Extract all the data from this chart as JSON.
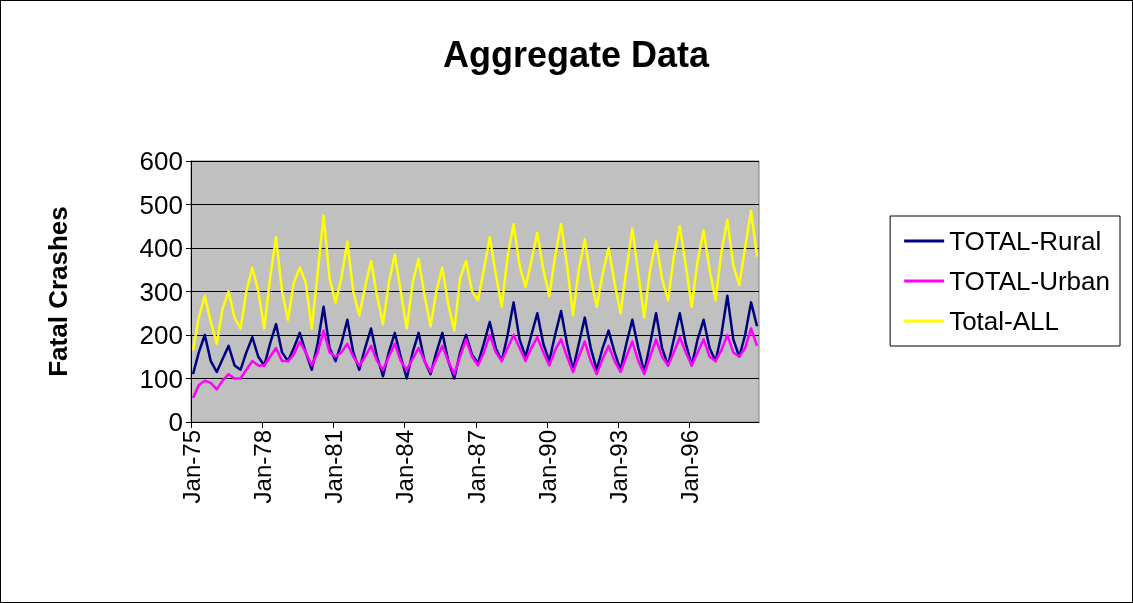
{
  "chart_data": {
    "type": "line",
    "title": "Aggregate Data",
    "ylabel": "Fatal Crashes",
    "x": [
      "1975-02",
      "1975-05",
      "1975-08",
      "1975-11",
      "1976-02",
      "1976-05",
      "1976-08",
      "1976-11",
      "1977-02",
      "1977-05",
      "1977-08",
      "1977-11",
      "1978-02",
      "1978-05",
      "1978-08",
      "1978-11",
      "1979-02",
      "1979-05",
      "1979-08",
      "1979-11",
      "1980-02",
      "1980-05",
      "1980-08",
      "1980-11",
      "1981-02",
      "1981-05",
      "1981-08",
      "1981-11",
      "1982-02",
      "1982-05",
      "1982-08",
      "1982-11",
      "1983-02",
      "1983-05",
      "1983-08",
      "1983-11",
      "1984-02",
      "1984-05",
      "1984-08",
      "1984-11",
      "1985-02",
      "1985-05",
      "1985-08",
      "1985-11",
      "1986-02",
      "1986-05",
      "1986-08",
      "1986-11",
      "1987-02",
      "1987-05",
      "1987-08",
      "1987-11",
      "1988-02",
      "1988-05",
      "1988-08",
      "1988-11",
      "1989-02",
      "1989-05",
      "1989-08",
      "1989-11",
      "1990-02",
      "1990-05",
      "1990-08",
      "1990-11",
      "1991-02",
      "1991-05",
      "1991-08",
      "1991-11",
      "1992-02",
      "1992-05",
      "1992-08",
      "1992-11",
      "1993-02",
      "1993-05",
      "1993-08",
      "1993-11",
      "1994-02",
      "1994-05",
      "1994-08",
      "1994-11",
      "1995-02",
      "1995-05",
      "1995-08",
      "1995-11",
      "1996-02",
      "1996-05",
      "1996-08",
      "1996-11",
      "1997-02",
      "1997-05",
      "1997-08",
      "1997-11",
      "1998-02",
      "1998-05",
      "1998-08",
      "1998-11"
    ],
    "series": [
      {
        "name": "TOTAL-Rural",
        "color": "#000080",
        "values": [
          110,
          160,
          200,
          140,
          115,
          145,
          175,
          130,
          120,
          160,
          195,
          150,
          130,
          180,
          225,
          160,
          140,
          170,
          205,
          160,
          120,
          180,
          265,
          170,
          140,
          180,
          235,
          160,
          120,
          170,
          215,
          150,
          105,
          160,
          205,
          150,
          100,
          160,
          205,
          140,
          110,
          160,
          205,
          140,
          100,
          160,
          200,
          155,
          135,
          180,
          230,
          170,
          140,
          200,
          275,
          190,
          150,
          200,
          250,
          180,
          140,
          200,
          255,
          180,
          120,
          180,
          240,
          170,
          120,
          170,
          210,
          160,
          120,
          180,
          235,
          170,
          115,
          180,
          250,
          170,
          130,
          190,
          250,
          180,
          130,
          190,
          235,
          170,
          140,
          200,
          290,
          190,
          150,
          200,
          275,
          220
        ]
      },
      {
        "name": "TOTAL-Urban",
        "color": "#ff00ff",
        "values": [
          55,
          85,
          95,
          90,
          75,
          95,
          110,
          100,
          100,
          120,
          140,
          130,
          130,
          150,
          170,
          140,
          140,
          155,
          185,
          160,
          130,
          160,
          210,
          160,
          150,
          160,
          180,
          150,
          130,
          150,
          175,
          140,
          120,
          150,
          180,
          140,
          120,
          145,
          170,
          140,
          115,
          145,
          175,
          140,
          110,
          150,
          190,
          150,
          130,
          160,
          200,
          160,
          140,
          170,
          200,
          170,
          140,
          170,
          195,
          160,
          130,
          165,
          190,
          150,
          115,
          150,
          185,
          140,
          110,
          145,
          175,
          140,
          115,
          150,
          185,
          140,
          110,
          150,
          190,
          150,
          130,
          160,
          195,
          160,
          130,
          160,
          190,
          150,
          140,
          165,
          200,
          160,
          150,
          170,
          215,
          175
        ]
      },
      {
        "name": "Total-ALL",
        "color": "#ffff00",
        "values": [
          165,
          240,
          290,
          230,
          180,
          260,
          300,
          240,
          215,
          300,
          355,
          300,
          215,
          330,
          425,
          300,
          235,
          320,
          355,
          320,
          215,
          340,
          475,
          330,
          275,
          330,
          415,
          300,
          245,
          310,
          370,
          290,
          225,
          320,
          385,
          300,
          215,
          320,
          375,
          290,
          220,
          300,
          355,
          270,
          210,
          330,
          370,
          300,
          280,
          350,
          425,
          340,
          265,
          380,
          455,
          360,
          310,
          370,
          435,
          350,
          290,
          380,
          455,
          360,
          245,
          350,
          420,
          330,
          265,
          340,
          400,
          320,
          250,
          350,
          445,
          340,
          240,
          350,
          415,
          330,
          280,
          380,
          450,
          360,
          265,
          370,
          440,
          350,
          280,
          390,
          465,
          360,
          315,
          400,
          485,
          380
        ]
      }
    ],
    "xlim": [
      "1975-01",
      "1998-12"
    ],
    "xticks": [
      {
        "value": "1975-01",
        "label": "Jan-75"
      },
      {
        "value": "1978-01",
        "label": "Jan-78"
      },
      {
        "value": "1981-01",
        "label": "Jan-81"
      },
      {
        "value": "1984-01",
        "label": "Jan-84"
      },
      {
        "value": "1987-01",
        "label": "Jan-87"
      },
      {
        "value": "1990-01",
        "label": "Jan-90"
      },
      {
        "value": "1993-01",
        "label": "Jan-93"
      },
      {
        "value": "1996-01",
        "label": "Jan-96"
      }
    ],
    "ylim": [
      0,
      600
    ],
    "yticks": [
      0,
      100,
      200,
      300,
      400,
      500,
      600
    ],
    "grid": "y",
    "legend": "right",
    "marker": "none",
    "line_style": "solid"
  }
}
